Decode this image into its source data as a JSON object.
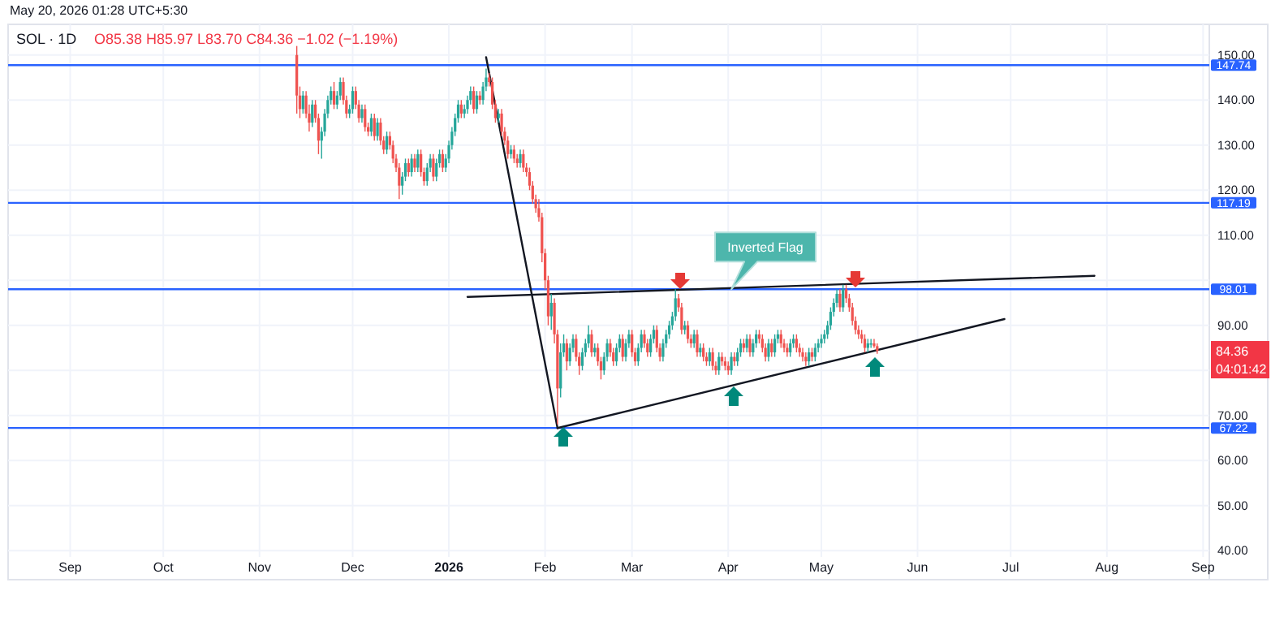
{
  "chart_data": {
    "type": "candlestick",
    "title": "SOL · 1D",
    "subtitle": "O85.38 H85.97 L83.70 C84.36 −1.02 (−1.19%)",
    "xlim": [
      "2025-08-12",
      "2026-09-03"
    ],
    "ylim": [
      38.6,
      156.8
    ],
    "xticks": [
      {
        "value": "2025-09-01",
        "label": "Sep"
      },
      {
        "value": "2025-10-01",
        "label": "Oct"
      },
      {
        "value": "2025-11-01",
        "label": "Nov"
      },
      {
        "value": "2025-12-01",
        "label": "Dec"
      },
      {
        "value": "2026-01-01",
        "label": "2026"
      },
      {
        "value": "2026-02-01",
        "label": "Feb"
      },
      {
        "value": "2026-03-01",
        "label": "Mar"
      },
      {
        "value": "2026-04-01",
        "label": "Apr"
      },
      {
        "value": "2026-05-01",
        "label": "May"
      },
      {
        "value": "2026-06-01",
        "label": "Jun"
      },
      {
        "value": "2026-07-01",
        "label": "Jul"
      },
      {
        "value": "2026-08-01",
        "label": "Aug"
      },
      {
        "value": "2026-09-01",
        "label": "Sep"
      }
    ],
    "yticks": [
      {
        "value": 40,
        "label": "40.00"
      },
      {
        "value": 50,
        "label": "50.00"
      },
      {
        "value": 60,
        "label": "60.00"
      },
      {
        "value": 70,
        "label": "70.00"
      },
      {
        "value": 80,
        "label": null
      },
      {
        "value": 90,
        "label": "90.00"
      },
      {
        "value": 100,
        "label": null
      },
      {
        "value": 110,
        "label": "110.00"
      },
      {
        "value": 120,
        "label": "120.00"
      },
      {
        "value": 130,
        "label": "130.00"
      },
      {
        "value": 140,
        "label": "140.00"
      },
      {
        "value": 150,
        "label": "150.00"
      }
    ],
    "grid": true,
    "x": [
      "2025-11-13",
      "2025-11-14",
      "2025-11-15",
      "2025-11-16",
      "2025-11-17",
      "2025-11-18",
      "2025-11-19",
      "2025-11-20",
      "2025-11-21",
      "2025-11-22",
      "2025-11-23",
      "2025-11-24",
      "2025-11-25",
      "2025-11-26",
      "2025-11-27",
      "2025-11-28",
      "2025-11-29",
      "2025-11-30",
      "2025-12-01",
      "2025-12-02",
      "2025-12-03",
      "2025-12-04",
      "2025-12-05",
      "2025-12-06",
      "2025-12-07",
      "2025-12-08",
      "2025-12-09",
      "2025-12-10",
      "2025-12-11",
      "2025-12-12",
      "2025-12-13",
      "2025-12-14",
      "2025-12-15",
      "2025-12-16",
      "2025-12-17",
      "2025-12-18",
      "2025-12-19",
      "2025-12-20",
      "2025-12-21",
      "2025-12-22",
      "2025-12-23",
      "2025-12-24",
      "2025-12-25",
      "2025-12-26",
      "2025-12-27",
      "2025-12-28",
      "2025-12-29",
      "2025-12-30",
      "2025-12-31",
      "2026-01-01",
      "2026-01-02",
      "2026-01-03",
      "2026-01-04",
      "2026-01-05",
      "2026-01-06",
      "2026-01-07",
      "2026-01-08",
      "2026-01-09",
      "2026-01-10",
      "2026-01-11",
      "2026-01-12",
      "2026-01-13",
      "2026-01-14",
      "2026-01-15",
      "2026-01-16",
      "2026-01-17",
      "2026-01-18",
      "2026-01-19",
      "2026-01-20",
      "2026-01-21",
      "2026-01-22",
      "2026-01-23",
      "2026-01-24",
      "2026-01-25",
      "2026-01-26",
      "2026-01-27",
      "2026-01-28",
      "2026-01-29",
      "2026-01-30",
      "2026-01-31",
      "2026-02-01",
      "2026-02-02",
      "2026-02-03",
      "2026-02-04",
      "2026-02-05",
      "2026-02-06",
      "2026-02-07",
      "2026-02-08",
      "2026-02-09",
      "2026-02-10",
      "2026-02-11",
      "2026-02-12",
      "2026-02-13",
      "2026-02-14",
      "2026-02-15",
      "2026-02-16",
      "2026-02-17",
      "2026-02-18",
      "2026-02-19",
      "2026-02-20",
      "2026-02-21",
      "2026-02-22",
      "2026-02-23",
      "2026-02-24",
      "2026-02-25",
      "2026-02-26",
      "2026-02-27",
      "2026-02-28",
      "2026-03-01",
      "2026-03-02",
      "2026-03-03",
      "2026-03-04",
      "2026-03-05",
      "2026-03-06",
      "2026-03-07",
      "2026-03-08",
      "2026-03-09",
      "2026-03-10",
      "2026-03-11",
      "2026-03-12",
      "2026-03-13",
      "2026-03-14",
      "2026-03-15",
      "2026-03-16",
      "2026-03-17",
      "2026-03-18",
      "2026-03-19",
      "2026-03-20",
      "2026-03-21",
      "2026-03-22",
      "2026-03-23",
      "2026-03-24",
      "2026-03-25",
      "2026-03-26",
      "2026-03-27",
      "2026-03-28",
      "2026-03-29",
      "2026-03-30",
      "2026-03-31",
      "2026-04-01",
      "2026-04-02",
      "2026-04-03",
      "2026-04-04",
      "2026-04-05",
      "2026-04-06",
      "2026-04-07",
      "2026-04-08",
      "2026-04-09",
      "2026-04-10",
      "2026-04-11",
      "2026-04-12",
      "2026-04-13",
      "2026-04-14",
      "2026-04-15",
      "2026-04-16",
      "2026-04-17",
      "2026-04-18",
      "2026-04-19",
      "2026-04-20",
      "2026-04-21",
      "2026-04-22",
      "2026-04-23",
      "2026-04-24",
      "2026-04-25",
      "2026-04-26",
      "2026-04-27",
      "2026-04-28",
      "2026-04-29",
      "2026-04-30",
      "2026-05-01",
      "2026-05-02",
      "2026-05-03",
      "2026-05-04",
      "2026-05-05",
      "2026-05-06",
      "2026-05-07",
      "2026-05-08",
      "2026-05-09",
      "2026-05-10",
      "2026-05-11",
      "2026-05-12",
      "2026-05-13",
      "2026-05-14",
      "2026-05-15",
      "2026-05-16",
      "2026-05-17",
      "2026-05-18",
      "2026-05-19"
    ],
    "ohlc": [
      [
        150,
        152,
        137,
        141
      ],
      [
        141,
        143,
        136,
        138
      ],
      [
        138,
        142,
        137,
        141
      ],
      [
        141,
        142,
        136,
        137
      ],
      [
        137,
        139,
        133,
        135
      ],
      [
        135,
        140,
        134,
        139
      ],
      [
        139,
        140,
        135,
        136
      ],
      [
        136,
        137,
        128,
        131
      ],
      [
        131,
        134,
        127,
        133
      ],
      [
        133,
        138,
        132,
        137
      ],
      [
        137,
        141,
        136,
        140
      ],
      [
        140,
        143,
        139,
        142
      ],
      [
        142,
        144,
        138,
        139
      ],
      [
        139,
        142,
        138,
        141
      ],
      [
        141,
        145,
        140,
        144
      ],
      [
        144,
        145,
        139,
        140
      ],
      [
        140,
        141,
        136,
        137
      ],
      [
        137,
        139,
        136,
        138
      ],
      [
        138,
        143,
        137,
        142
      ],
      [
        142,
        143,
        138,
        139
      ],
      [
        139,
        140,
        135,
        136
      ],
      [
        136,
        139,
        135,
        138
      ],
      [
        138,
        139,
        133,
        134
      ],
      [
        134,
        135,
        132,
        133
      ],
      [
        133,
        137,
        132,
        136
      ],
      [
        136,
        137,
        131,
        132
      ],
      [
        132,
        136,
        131,
        135
      ],
      [
        135,
        136,
        130,
        131
      ],
      [
        131,
        132,
        128,
        129
      ],
      [
        129,
        133,
        128,
        132
      ],
      [
        132,
        133,
        129,
        130
      ],
      [
        130,
        131,
        126,
        127
      ],
      [
        127,
        128,
        124,
        125
      ],
      [
        125,
        126,
        118,
        121
      ],
      [
        121,
        124,
        119,
        123
      ],
      [
        123,
        127,
        122,
        126
      ],
      [
        126,
        127,
        123,
        124
      ],
      [
        124,
        128,
        123,
        127
      ],
      [
        127,
        128,
        124,
        125
      ],
      [
        125,
        129,
        124,
        128
      ],
      [
        128,
        129,
        123,
        124
      ],
      [
        124,
        125,
        121,
        122
      ],
      [
        122,
        126,
        121,
        125
      ],
      [
        125,
        128,
        124,
        127
      ],
      [
        127,
        128,
        122,
        123
      ],
      [
        123,
        127,
        122,
        126
      ],
      [
        126,
        129,
        125,
        128
      ],
      [
        128,
        129,
        124,
        125
      ],
      [
        125,
        128,
        124,
        127
      ],
      [
        127,
        131,
        126,
        130
      ],
      [
        130,
        134,
        129,
        133
      ],
      [
        133,
        137,
        132,
        136
      ],
      [
        136,
        140,
        135,
        139
      ],
      [
        139,
        140,
        136,
        137
      ],
      [
        137,
        139,
        136,
        138
      ],
      [
        138,
        141,
        137,
        140
      ],
      [
        140,
        143,
        139,
        142
      ],
      [
        142,
        143,
        137,
        138
      ],
      [
        138,
        142,
        137,
        141
      ],
      [
        141,
        142,
        139,
        140
      ],
      [
        140,
        144,
        139,
        143
      ],
      [
        143,
        147,
        142,
        145
      ],
      [
        145,
        146,
        143,
        144
      ],
      [
        144,
        145,
        138,
        139
      ],
      [
        139,
        140,
        135,
        136
      ],
      [
        136,
        138,
        135,
        137
      ],
      [
        137,
        138,
        132,
        133
      ],
      [
        133,
        134,
        130,
        131
      ],
      [
        131,
        132,
        127,
        128
      ],
      [
        128,
        130,
        127,
        129
      ],
      [
        129,
        130,
        126,
        127
      ],
      [
        127,
        128,
        125,
        126
      ],
      [
        126,
        129,
        125,
        128
      ],
      [
        128,
        129,
        124,
        125
      ],
      [
        125,
        126,
        123,
        124
      ],
      [
        124,
        125,
        120,
        121
      ],
      [
        121,
        122,
        117,
        118
      ],
      [
        118,
        119,
        115,
        116
      ],
      [
        116,
        118,
        113,
        114
      ],
      [
        114,
        115,
        104,
        106
      ],
      [
        106,
        107,
        98,
        100
      ],
      [
        100,
        101,
        90,
        92
      ],
      [
        92,
        97,
        89,
        95
      ],
      [
        95,
        96,
        86,
        88
      ],
      [
        88,
        89,
        68,
        76
      ],
      [
        76,
        86,
        74,
        84
      ],
      [
        84,
        88,
        83,
        86
      ],
      [
        86,
        87,
        80,
        82
      ],
      [
        82,
        86,
        81,
        85
      ],
      [
        85,
        88,
        84,
        87
      ],
      [
        87,
        88,
        82,
        83
      ],
      [
        83,
        84,
        79,
        81
      ],
      [
        81,
        85,
        80,
        84
      ],
      [
        84,
        87,
        83,
        86
      ],
      [
        86,
        90,
        85,
        88
      ],
      [
        88,
        89,
        83,
        84
      ],
      [
        84,
        86,
        83,
        85
      ],
      [
        85,
        86,
        81,
        82
      ],
      [
        82,
        83,
        78,
        80
      ],
      [
        80,
        84,
        79,
        83
      ],
      [
        83,
        87,
        82,
        86
      ],
      [
        86,
        87,
        83,
        84
      ],
      [
        84,
        85,
        81,
        82
      ],
      [
        82,
        86,
        81,
        85
      ],
      [
        85,
        88,
        84,
        87
      ],
      [
        87,
        88,
        82,
        83
      ],
      [
        83,
        87,
        82,
        86
      ],
      [
        86,
        89,
        85,
        88
      ],
      [
        88,
        89,
        83,
        84
      ],
      [
        84,
        85,
        81,
        82
      ],
      [
        82,
        86,
        81,
        85
      ],
      [
        85,
        89,
        84,
        88
      ],
      [
        88,
        89,
        85,
        86
      ],
      [
        86,
        87,
        83,
        84
      ],
      [
        84,
        88,
        83,
        87
      ],
      [
        87,
        90,
        86,
        89
      ],
      [
        89,
        90,
        84,
        85
      ],
      [
        85,
        86,
        82,
        83
      ],
      [
        83,
        87,
        82,
        86
      ],
      [
        86,
        89,
        85,
        88
      ],
      [
        88,
        91,
        87,
        90
      ],
      [
        90,
        93,
        89,
        92
      ],
      [
        92,
        98,
        91,
        96
      ],
      [
        96,
        97,
        93,
        94
      ],
      [
        94,
        95,
        88,
        89
      ],
      [
        89,
        91,
        88,
        90
      ],
      [
        90,
        91,
        86,
        87
      ],
      [
        87,
        88,
        85,
        86
      ],
      [
        86,
        89,
        85,
        88
      ],
      [
        88,
        89,
        83,
        84
      ],
      [
        84,
        86,
        83,
        85
      ],
      [
        85,
        86,
        82,
        83
      ],
      [
        83,
        84,
        81,
        82
      ],
      [
        82,
        85,
        81,
        84
      ],
      [
        84,
        85,
        80,
        81
      ],
      [
        81,
        82,
        79,
        80
      ],
      [
        80,
        84,
        79,
        83
      ],
      [
        83,
        84,
        81,
        82
      ],
      [
        82,
        83,
        80,
        81
      ],
      [
        81,
        82,
        79,
        80
      ],
      [
        80,
        84,
        79,
        83
      ],
      [
        83,
        84,
        81,
        82
      ],
      [
        82,
        85,
        81,
        84
      ],
      [
        84,
        87,
        83,
        86
      ],
      [
        86,
        87,
        84,
        85
      ],
      [
        85,
        88,
        84,
        87
      ],
      [
        87,
        88,
        83,
        84
      ],
      [
        84,
        87,
        83,
        86
      ],
      [
        86,
        89,
        85,
        88
      ],
      [
        88,
        89,
        86,
        87
      ],
      [
        87,
        88,
        84,
        85
      ],
      [
        85,
        86,
        82,
        83
      ],
      [
        83,
        87,
        82,
        86
      ],
      [
        86,
        87,
        83,
        84
      ],
      [
        84,
        88,
        83,
        87
      ],
      [
        87,
        89,
        86,
        88
      ],
      [
        88,
        89,
        85,
        86
      ],
      [
        86,
        87,
        84,
        85
      ],
      [
        85,
        86,
        83,
        84
      ],
      [
        84,
        87,
        83,
        86
      ],
      [
        86,
        88,
        85,
        87
      ],
      [
        87,
        88,
        84,
        85
      ],
      [
        85,
        86,
        83,
        84
      ],
      [
        84,
        85,
        82,
        83
      ],
      [
        83,
        84,
        81,
        82
      ],
      [
        82,
        85,
        81,
        84
      ],
      [
        84,
        85,
        82,
        83
      ],
      [
        83,
        86,
        82,
        85
      ],
      [
        85,
        87,
        84,
        86
      ],
      [
        86,
        88,
        85,
        87
      ],
      [
        87,
        89,
        86,
        88
      ],
      [
        88,
        91,
        87,
        90
      ],
      [
        90,
        94,
        89,
        93
      ],
      [
        93,
        96,
        92,
        95
      ],
      [
        95,
        98,
        94,
        97
      ],
      [
        97,
        98,
        93,
        94
      ],
      [
        94,
        99,
        93,
        98
      ],
      [
        98,
        99,
        95,
        96
      ],
      [
        96,
        97,
        93,
        94
      ],
      [
        94,
        95,
        90,
        91
      ],
      [
        91,
        92,
        88,
        89
      ],
      [
        89,
        90,
        87,
        88
      ],
      [
        88,
        89,
        86,
        87
      ],
      [
        87,
        88,
        84,
        85
      ],
      [
        85,
        87,
        84,
        86
      ],
      [
        86,
        87,
        85,
        86
      ],
      [
        86,
        87,
        85,
        85.38
      ],
      [
        85.38,
        85.97,
        83.7,
        84.36
      ]
    ],
    "series": [
      {
        "type": "line",
        "color": "#131722",
        "x": [
          "2026-01-13",
          "2026-02-05"
        ],
        "values": [
          149.5,
          67.2
        ]
      },
      {
        "type": "line",
        "color": "#131722",
        "x": [
          "2026-02-05",
          "2026-06-29"
        ],
        "values": [
          67.2,
          91.4
        ]
      },
      {
        "type": "line",
        "color": "#131722",
        "x": [
          "2026-01-07",
          "2026-07-28"
        ],
        "values": [
          96.3,
          101
        ]
      }
    ],
    "ref_lines": [
      {
        "axis": "y",
        "value": 147.74,
        "label": "147.74",
        "color": "#2962ff"
      },
      {
        "axis": "y",
        "value": 117.19,
        "label": "117.19",
        "color": "#2962ff"
      },
      {
        "axis": "y",
        "value": 98.01,
        "label": "98.01",
        "color": "#2962ff"
      },
      {
        "axis": "y",
        "value": 67.22,
        "label": "67.22",
        "color": "#2962ff"
      }
    ],
    "annotations": [
      "May 20, 2026 01:28 UTC+5:30",
      {
        "text": "Inverted Flag",
        "x": "2026-04-02",
        "y": 98
      },
      "84.36",
      "04:01:42"
    ]
  }
}
